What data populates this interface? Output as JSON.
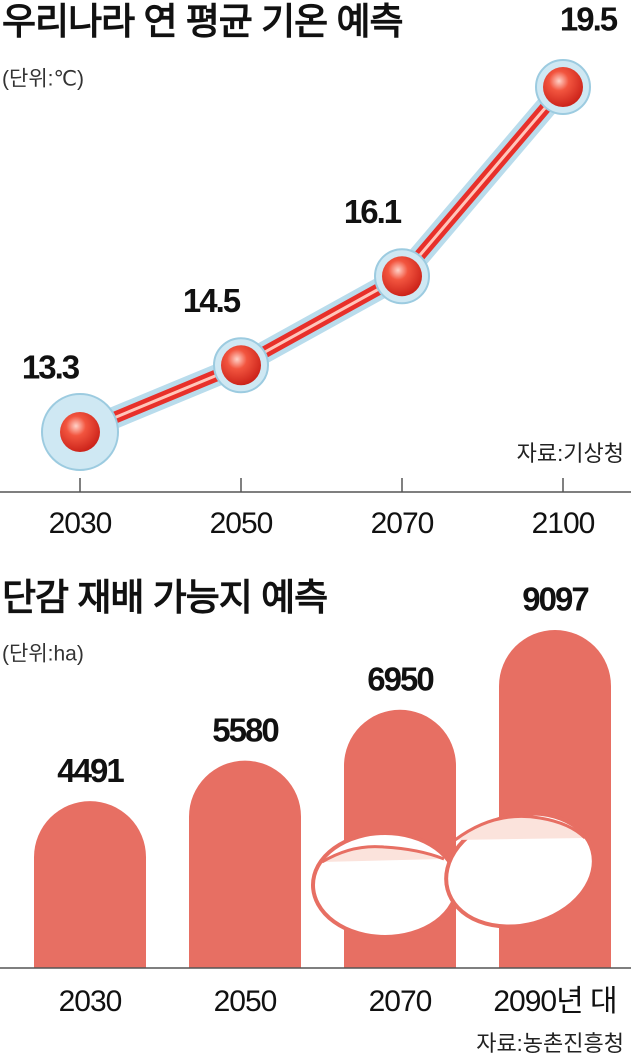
{
  "chart_data": [
    {
      "type": "line",
      "title": "우리나라 연 평균 기온 예측",
      "subtitle": "(단위:℃)",
      "source": "자료:기상청",
      "categories": [
        "2030",
        "2050",
        "2070",
        "2100"
      ],
      "values": [
        13.3,
        14.5,
        16.1,
        19.5
      ],
      "color": "#e8302a"
    },
    {
      "type": "bar",
      "title": "단감 재배 가능지 예측",
      "subtitle": "(단위:ha)",
      "source": "자료:농촌진흥청",
      "categories": [
        "2030",
        "2050",
        "2070",
        "2090년 대"
      ],
      "values": [
        4491,
        5580,
        6950,
        9097
      ],
      "color": "#e76f63"
    }
  ]
}
